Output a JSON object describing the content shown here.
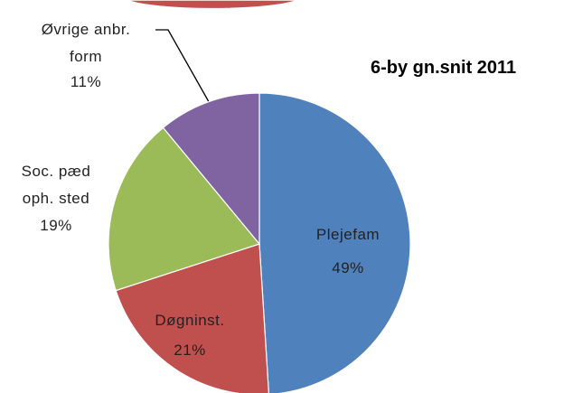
{
  "chart_data": {
    "type": "pie",
    "title": "6-by gn.snit 2011",
    "categories": [
      "Plejefam",
      "Døgninst.",
      "Soc. pæd oph. sted",
      "Øvrige anbr. form"
    ],
    "values": [
      49,
      21,
      19,
      11
    ],
    "value_labels": [
      "49%",
      "21%",
      "19%",
      "11%"
    ],
    "colors": [
      "#4f81bd",
      "#c0504d",
      "#9bbb59",
      "#8064a2"
    ]
  }
}
